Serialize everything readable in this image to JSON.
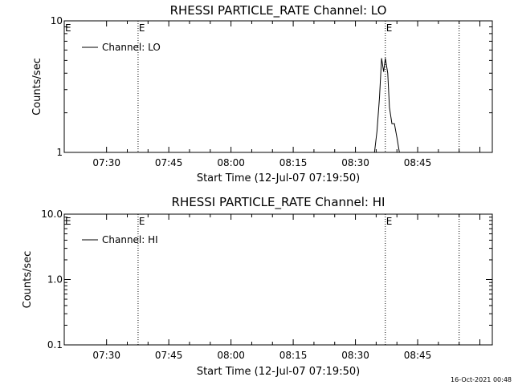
{
  "footer_timestamp": "16-Oct-2021 00:48",
  "chart_data": [
    {
      "type": "line",
      "title": "RHESSI PARTICLE_RATE Channel: LO",
      "xlabel": "Start Time (12-Jul-07 07:19:50)",
      "ylabel": "Counts/sec",
      "yscale": "log",
      "ylim": [
        1,
        10
      ],
      "y_tick_values": [
        1,
        10
      ],
      "y_tick_labels": [
        "1",
        "10"
      ],
      "xlim_minutes": [
        439.8,
        543
      ],
      "x_tick_values": [
        450,
        465,
        480,
        495,
        510,
        525
      ],
      "x_tick_labels": [
        "07:30",
        "07:45",
        "08:00",
        "08:15",
        "08:30",
        "08:45"
      ],
      "legend": "Channel: LO",
      "legend_position": "top-left",
      "markers": [
        {
          "x": 457.6,
          "label": "E"
        },
        {
          "x": 517.2,
          "label": "E"
        },
        {
          "x": 535,
          "label": ""
        }
      ],
      "series": [
        {
          "x": [
            514.6,
            515.2,
            515.8,
            516.3,
            516.8,
            517.2,
            517.8,
            518.2,
            518.8,
            519.4,
            520.0,
            520.6
          ],
          "y": [
            1.0,
            1.45,
            2.6,
            5.2,
            4.1,
            5.2,
            4.0,
            2.2,
            1.65,
            1.65,
            1.3,
            1.0
          ]
        }
      ]
    },
    {
      "type": "line",
      "title": "RHESSI PARTICLE_RATE Channel: HI",
      "xlabel": "Start Time (12-Jul-07 07:19:50)",
      "ylabel": "Counts/sec",
      "yscale": "log",
      "ylim": [
        0.1,
        10
      ],
      "y_tick_values": [
        0.1,
        1,
        10
      ],
      "y_tick_labels": [
        "0.1",
        "1.0",
        "10.0"
      ],
      "xlim_minutes": [
        439.8,
        543
      ],
      "x_tick_values": [
        450,
        465,
        480,
        495,
        510,
        525
      ],
      "x_tick_labels": [
        "07:30",
        "07:45",
        "08:00",
        "08:15",
        "08:30",
        "08:45"
      ],
      "legend": "Channel: HI",
      "legend_position": "top-left",
      "markers": [
        {
          "x": 457.6,
          "label": "E"
        },
        {
          "x": 517.2,
          "label": "E"
        },
        {
          "x": 535,
          "label": ""
        }
      ],
      "series": []
    }
  ]
}
